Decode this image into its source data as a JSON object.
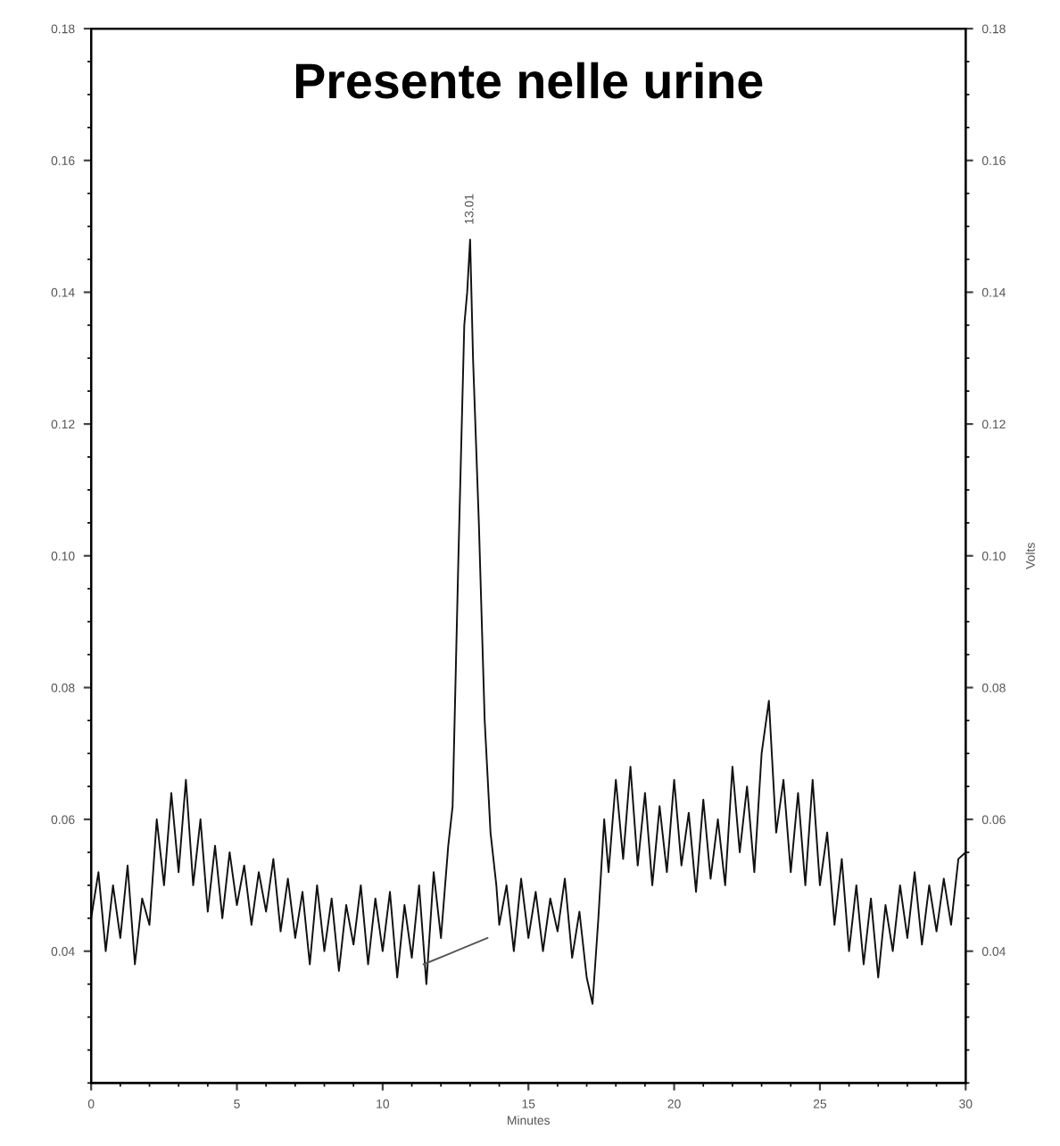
{
  "chart_data": {
    "type": "line",
    "title": "Presente nelle urine",
    "xlabel": "Minutes",
    "y2label": "Volts",
    "annotations": [
      {
        "text": "13.01",
        "x": 13.0,
        "y": 0.148
      }
    ],
    "series": [
      {
        "color": "#111111",
        "x": [
          0,
          0.25,
          0.5,
          0.75,
          1.0,
          1.25,
          1.5,
          1.75,
          2.0,
          2.25,
          2.5,
          2.75,
          3.0,
          3.25,
          3.5,
          3.75,
          4.0,
          4.25,
          4.5,
          4.75,
          5.0,
          5.25,
          5.5,
          5.75,
          6.0,
          6.25,
          6.5,
          6.75,
          7.0,
          7.25,
          7.5,
          7.75,
          8.0,
          8.25,
          8.5,
          8.75,
          9.0,
          9.25,
          9.5,
          9.75,
          10.0,
          10.25,
          10.5,
          10.75,
          11.0,
          11.25,
          11.5,
          11.75,
          12.0,
          12.25,
          12.4,
          12.6,
          12.8,
          12.9,
          13.0,
          13.1,
          13.3,
          13.5,
          13.7,
          13.9,
          14.0,
          14.25,
          14.5,
          14.75,
          15.0,
          15.25,
          15.5,
          15.75,
          16.0,
          16.25,
          16.5,
          16.75,
          17.0,
          17.2,
          17.4,
          17.6,
          17.75,
          18.0,
          18.25,
          18.5,
          18.75,
          19.0,
          19.25,
          19.5,
          19.75,
          20.0,
          20.25,
          20.5,
          20.75,
          21.0,
          21.25,
          21.5,
          21.75,
          22.0,
          22.25,
          22.5,
          22.75,
          23.0,
          23.25,
          23.5,
          23.75,
          24.0,
          24.25,
          24.5,
          24.75,
          25.0,
          25.25,
          25.5,
          25.75,
          26.0,
          26.25,
          26.5,
          26.75,
          27.0,
          27.25,
          27.5,
          27.75,
          28.0,
          28.25,
          28.5,
          28.75,
          29.0,
          29.25,
          29.5,
          29.75,
          30.0
        ],
        "values": [
          0.045,
          0.052,
          0.04,
          0.05,
          0.042,
          0.053,
          0.038,
          0.048,
          0.044,
          0.06,
          0.05,
          0.064,
          0.052,
          0.066,
          0.05,
          0.06,
          0.046,
          0.056,
          0.045,
          0.055,
          0.047,
          0.053,
          0.044,
          0.052,
          0.046,
          0.054,
          0.043,
          0.051,
          0.042,
          0.049,
          0.038,
          0.05,
          0.04,
          0.048,
          0.037,
          0.047,
          0.041,
          0.05,
          0.038,
          0.048,
          0.04,
          0.049,
          0.036,
          0.047,
          0.039,
          0.05,
          0.035,
          0.052,
          0.042,
          0.056,
          0.062,
          0.1,
          0.135,
          0.14,
          0.148,
          0.13,
          0.105,
          0.075,
          0.058,
          0.05,
          0.044,
          0.05,
          0.04,
          0.051,
          0.042,
          0.049,
          0.04,
          0.048,
          0.043,
          0.051,
          0.039,
          0.046,
          0.036,
          0.032,
          0.045,
          0.06,
          0.052,
          0.066,
          0.054,
          0.068,
          0.053,
          0.064,
          0.05,
          0.062,
          0.052,
          0.066,
          0.053,
          0.061,
          0.049,
          0.063,
          0.051,
          0.06,
          0.05,
          0.068,
          0.055,
          0.065,
          0.052,
          0.07,
          0.078,
          0.058,
          0.066,
          0.052,
          0.064,
          0.05,
          0.066,
          0.05,
          0.058,
          0.044,
          0.054,
          0.04,
          0.05,
          0.038,
          0.048,
          0.036,
          0.047,
          0.04,
          0.05,
          0.042,
          0.052,
          0.041,
          0.05,
          0.043,
          0.051,
          0.044,
          0.054,
          0.055
        ]
      },
      {
        "color": "#555555",
        "x": [
          11.4,
          13.6
        ],
        "values": [
          0.038,
          0.042
        ]
      }
    ],
    "xlim": [
      0,
      30
    ],
    "xticks": [
      0,
      5,
      10,
      15,
      20,
      25,
      30
    ],
    "ylim": [
      0.02,
      0.18
    ],
    "yticks": [
      0.04,
      0.06,
      0.08,
      {
        "value": 0.1,
        "label": "0.10"
      },
      0.12,
      0.14,
      0.16,
      0.18
    ],
    "y2lim": [
      0.02,
      0.18
    ],
    "y2ticks": [
      0.04,
      0.06,
      0.08,
      {
        "value": 0.1,
        "label": "0.10"
      },
      0.12,
      0.14,
      0.16,
      0.18
    ],
    "grid": false,
    "legend": false
  }
}
